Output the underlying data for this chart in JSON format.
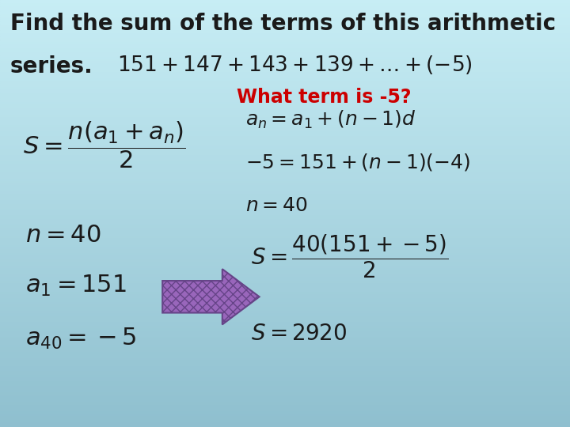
{
  "bg_color": "#5bbcd0",
  "bg_color_light": "#c0e8f0",
  "text_color": "#1a1a1a",
  "highlight_color": "#cc0000",
  "arrow_color": "#9966aa",
  "arrow_edge_color": "#664488",
  "title1": "Find the sum of the terms of this arithmetic",
  "title2": "series.",
  "series": "151+147+143+139+\\ldots+(-5)",
  "what_term": "What term is -5?",
  "formula_S": "S=\\dfrac{n\\left(a_1+a_n\\right)}{2}",
  "formula_an": "a_n=a_1+\\left(n-1\\right)d",
  "formula_sub": "-5=151+\\left(n-1\\right)\\left(-4\\right)",
  "formula_n40r": "n=40",
  "formula_n40l": "n=40",
  "formula_a1": "a_1=151",
  "formula_a40": "a_{40}=-5",
  "formula_S2": "S=\\dfrac{40\\left(151+-5\\right)}{2}",
  "formula_S3": "S=2920"
}
